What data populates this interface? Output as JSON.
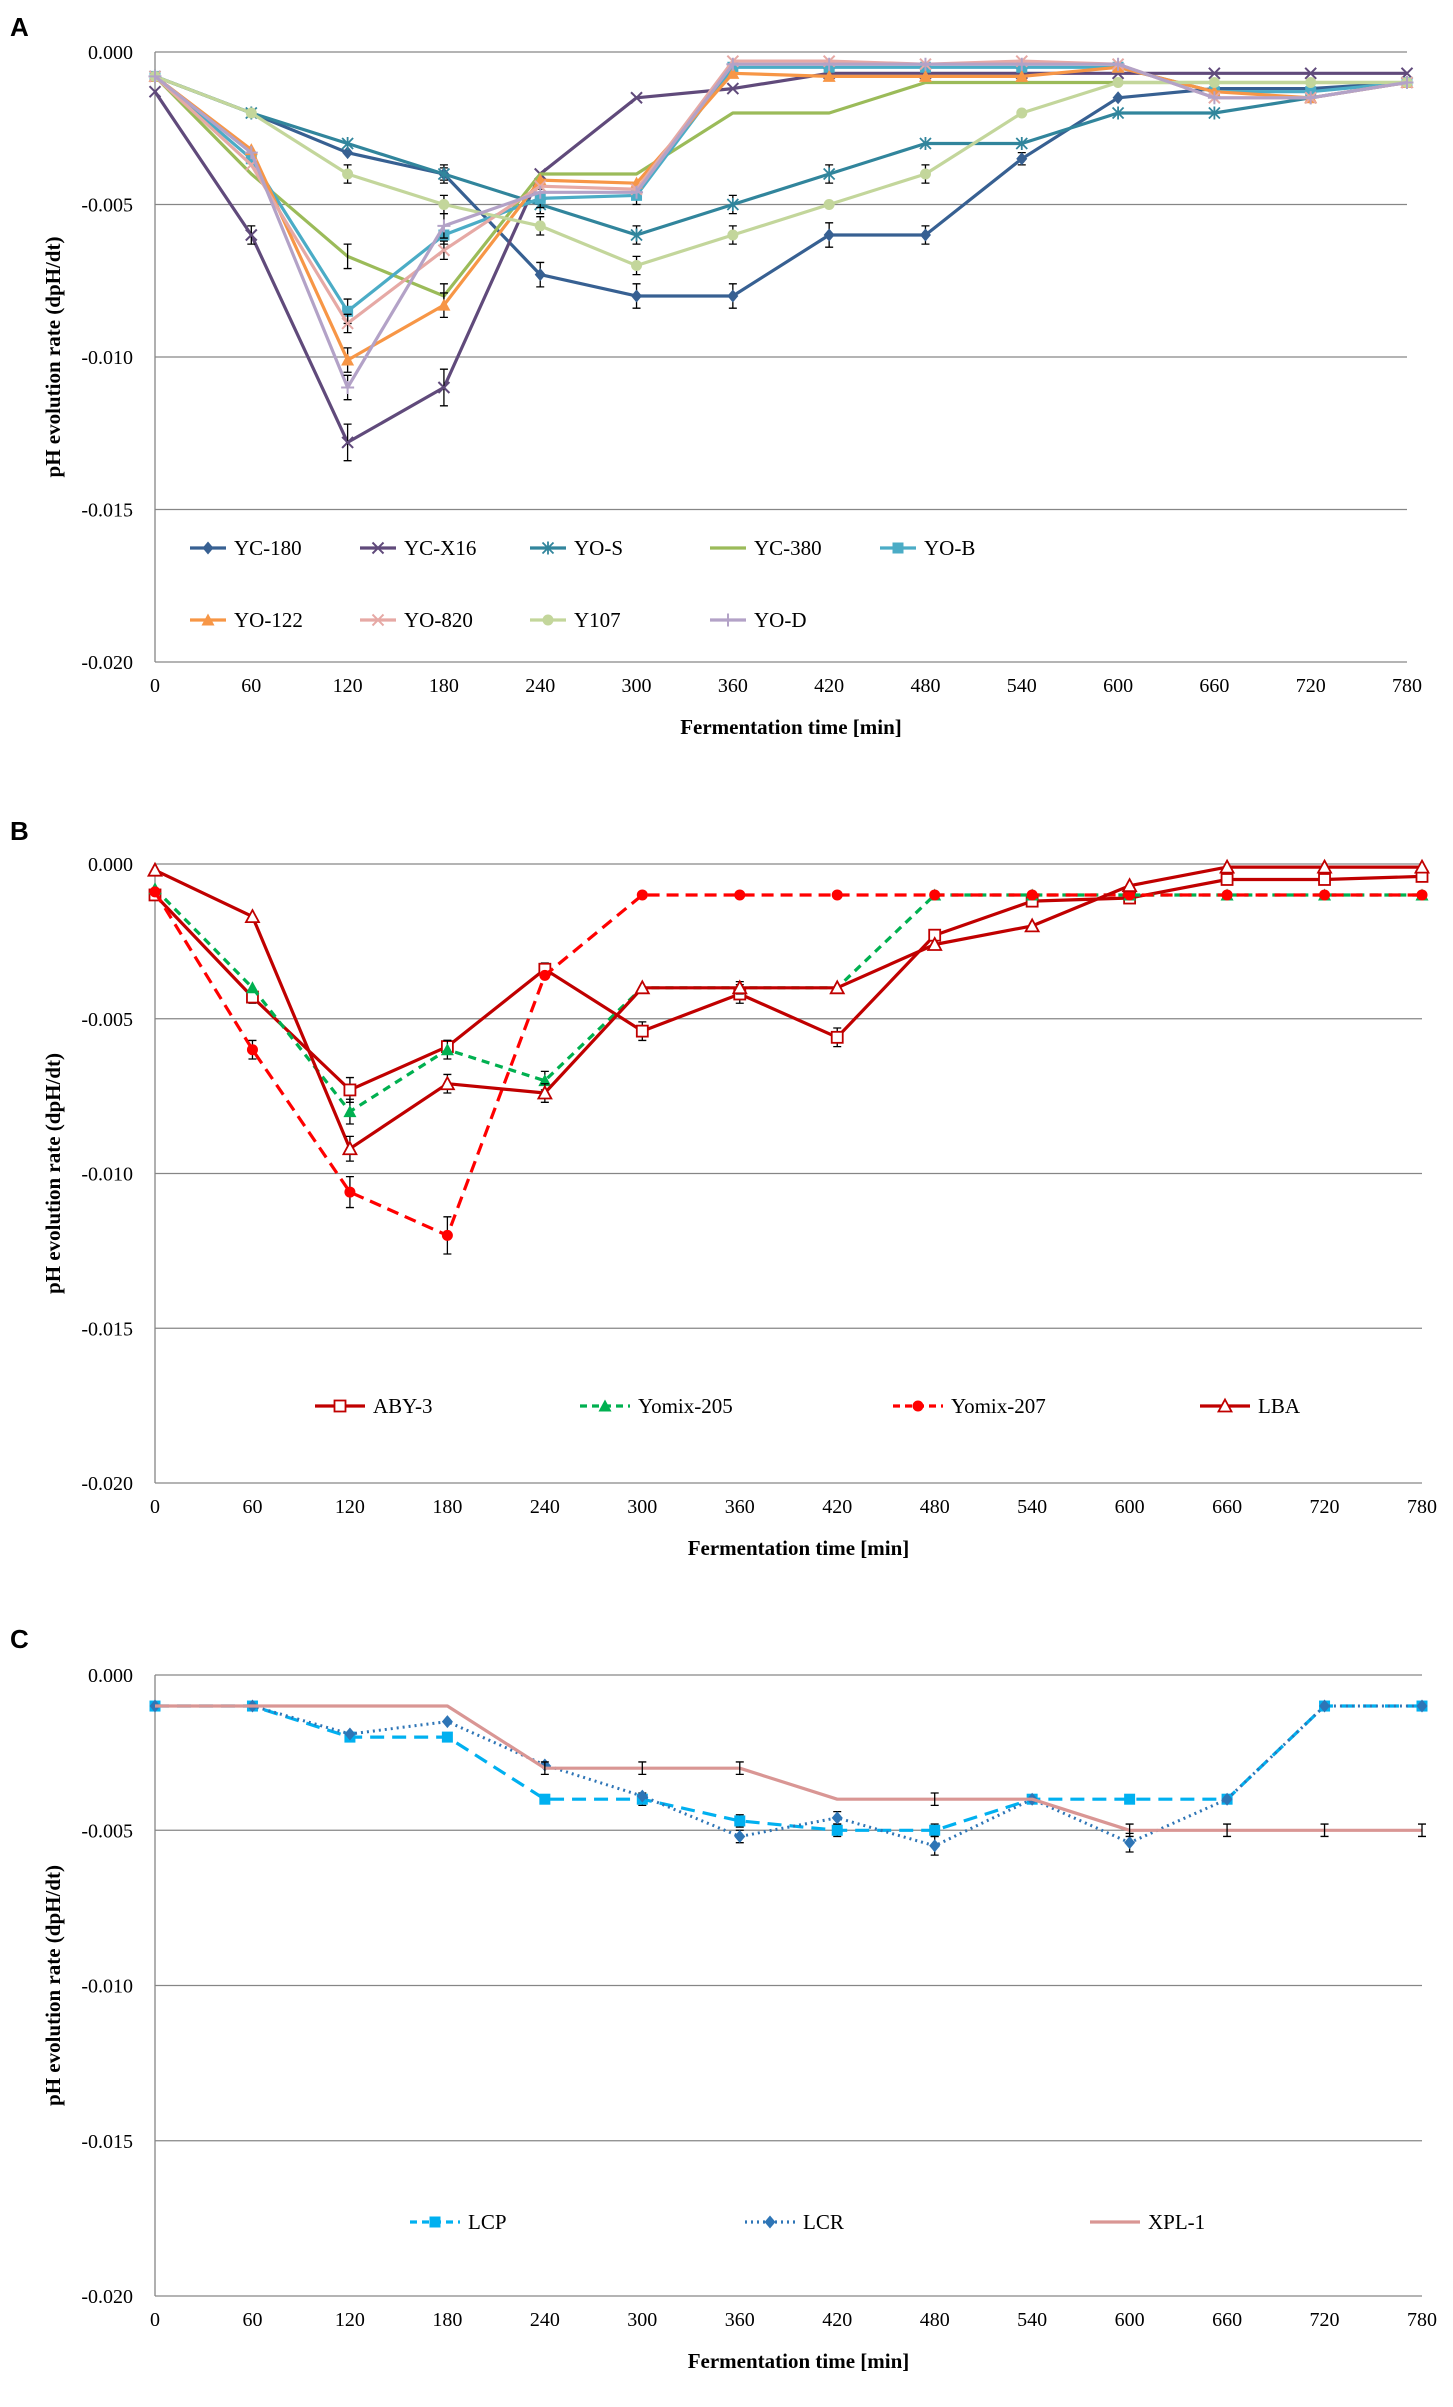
{
  "chart_data": [
    {
      "panel": "A",
      "type": "line",
      "xlabel": "Fermentation time [min]",
      "ylabel": "pH evolution rate (dpH/dt)",
      "ylim": [
        -0.02,
        0.0
      ],
      "yticks": [
        "0.000",
        "-0.005",
        "-0.010",
        "-0.015",
        "-0.020"
      ],
      "xticks": [
        "0",
        "60",
        "120",
        "180",
        "240",
        "300",
        "360",
        "420",
        "480",
        "540",
        "600",
        "660",
        "720",
        "780"
      ],
      "x": [
        0,
        60,
        120,
        180,
        240,
        300,
        360,
        420,
        480,
        540,
        600,
        660,
        720,
        780
      ],
      "legend": "inside-bottom",
      "series": [
        {
          "name": "YC-180",
          "color": "#376092",
          "marker": "diamond",
          "dash": "",
          "values": [
            -0.0008,
            -0.002,
            -0.0033,
            -0.004,
            -0.0073,
            -0.008,
            -0.008,
            -0.006,
            -0.006,
            -0.0035,
            -0.0015,
            -0.0012,
            -0.0012,
            -0.001
          ],
          "err": [
            0,
            0,
            0,
            0.0003,
            0.0004,
            0.0004,
            0.0004,
            0.0004,
            0.0003,
            0.0002,
            0,
            0,
            0,
            0
          ]
        },
        {
          "name": "YC-X16",
          "color": "#604A7B",
          "marker": "x",
          "dash": "",
          "values": [
            -0.0013,
            -0.006,
            -0.0128,
            -0.011,
            -0.004,
            -0.0015,
            -0.0012,
            -0.0007,
            -0.0007,
            -0.0007,
            -0.0007,
            -0.0007,
            -0.0007,
            -0.0007
          ],
          "err": [
            0,
            0.0003,
            0.0006,
            0.0006,
            0,
            0,
            0,
            0,
            0,
            0,
            0,
            0,
            0,
            0
          ]
        },
        {
          "name": "YO-S",
          "color": "#31859C",
          "marker": "star",
          "dash": "",
          "values": [
            -0.0008,
            -0.002,
            -0.003,
            -0.004,
            -0.005,
            -0.006,
            -0.005,
            -0.004,
            -0.003,
            -0.003,
            -0.002,
            -0.002,
            -0.0015,
            -0.001
          ],
          "err": [
            0,
            0,
            0,
            0.0002,
            0.0003,
            0.0003,
            0.0003,
            0.0003,
            0,
            0,
            0,
            0,
            0,
            0
          ]
        },
        {
          "name": "YC-380",
          "color": "#9BBB59",
          "marker": "none",
          "dash": "",
          "values": [
            -0.0008,
            -0.004,
            -0.0067,
            -0.008,
            -0.004,
            -0.004,
            -0.002,
            -0.002,
            -0.001,
            -0.001,
            -0.001,
            -0.001,
            -0.001,
            -0.001
          ],
          "err": [
            0,
            0,
            0.0004,
            0.0004,
            0,
            0,
            0,
            0,
            0,
            0,
            0,
            0,
            0,
            0
          ]
        },
        {
          "name": "YO-B",
          "color": "#4BACC6",
          "marker": "square",
          "dash": "",
          "values": [
            -0.0008,
            -0.0035,
            -0.0085,
            -0.006,
            -0.0048,
            -0.0047,
            -0.0005,
            -0.0005,
            -0.0005,
            -0.0005,
            -0.0005,
            -0.0013,
            -0.0013,
            -0.001
          ],
          "err": [
            0,
            0,
            0.0004,
            0.0003,
            0.0003,
            0.0003,
            0,
            0,
            0,
            0,
            0,
            0,
            0,
            0
          ]
        },
        {
          "name": "YO-122",
          "color": "#F79646",
          "marker": "triangle",
          "dash": "",
          "values": [
            -0.0008,
            -0.0032,
            -0.0101,
            -0.0083,
            -0.0042,
            -0.0043,
            -0.0007,
            -0.0008,
            -0.0008,
            -0.0008,
            -0.0005,
            -0.0013,
            -0.0015,
            -0.001
          ],
          "err": [
            0,
            0,
            0.0004,
            0.0004,
            0,
            0,
            0,
            0,
            0,
            0,
            0,
            0,
            0,
            0
          ]
        },
        {
          "name": "YO-820",
          "color": "#E6A9A5",
          "marker": "x",
          "dash": "",
          "values": [
            -0.0008,
            -0.0037,
            -0.0089,
            -0.0065,
            -0.0044,
            -0.0045,
            -0.0003,
            -0.0003,
            -0.0004,
            -0.0003,
            -0.0004,
            -0.0015,
            -0.0015,
            -0.001
          ],
          "err": [
            0,
            0,
            0.0003,
            0.0003,
            0,
            0,
            0,
            0,
            0,
            0,
            0,
            0,
            0,
            0
          ]
        },
        {
          "name": "Y107",
          "color": "#C3D69B",
          "marker": "circle",
          "dash": "",
          "values": [
            -0.0008,
            -0.002,
            -0.004,
            -0.005,
            -0.0057,
            -0.007,
            -0.006,
            -0.005,
            -0.004,
            -0.002,
            -0.001,
            -0.001,
            -0.001,
            -0.001
          ],
          "err": [
            0,
            0,
            0.0003,
            0.0003,
            0.0003,
            0.0003,
            0.0003,
            0,
            0.0003,
            0,
            0,
            0,
            0,
            0
          ]
        },
        {
          "name": "YO-D",
          "color": "#B3A2C7",
          "marker": "plus",
          "dash": "",
          "values": [
            -0.0008,
            -0.0033,
            -0.011,
            -0.0057,
            -0.0046,
            -0.0046,
            -0.0004,
            -0.0004,
            -0.0004,
            -0.0004,
            -0.0004,
            -0.0015,
            -0.0015,
            -0.001
          ],
          "err": [
            0,
            0,
            0.0004,
            0.0004,
            0,
            0,
            0,
            0,
            0,
            0,
            0,
            0,
            0,
            0
          ]
        }
      ]
    },
    {
      "panel": "B",
      "type": "line",
      "xlabel": "Fermentation time [min]",
      "ylabel": "pH evolution rate (dpH/dt)",
      "ylim": [
        -0.02,
        0.0
      ],
      "yticks": [
        "0.000",
        "-0.005",
        "-0.010",
        "-0.015",
        "-0.020"
      ],
      "xticks": [
        "0",
        "60",
        "120",
        "180",
        "240",
        "300",
        "360",
        "420",
        "480",
        "540",
        "600",
        "660",
        "720",
        "780"
      ],
      "x": [
        0,
        60,
        120,
        180,
        240,
        300,
        360,
        420,
        480,
        540,
        600,
        660,
        720,
        780
      ],
      "legend": "inside-bottom",
      "series": [
        {
          "name": "ABY-3",
          "color": "#C00000",
          "marker": "square-open",
          "dash": "",
          "values": [
            -0.001,
            -0.0043,
            -0.0073,
            -0.0059,
            -0.0034,
            -0.0054,
            -0.0042,
            -0.0056,
            -0.0023,
            -0.0012,
            -0.0011,
            -0.0005,
            -0.0005,
            -0.0004
          ],
          "err": [
            0,
            0.0002,
            0.0004,
            0.0002,
            0.0002,
            0.0003,
            0.0003,
            0.0003,
            0,
            0,
            0,
            0,
            0,
            0
          ]
        },
        {
          "name": "Yomix-205",
          "color": "#00B050",
          "marker": "triangle",
          "dash": "8,6",
          "values": [
            -0.0008,
            -0.004,
            -0.008,
            -0.006,
            -0.007,
            -0.004,
            -0.004,
            -0.004,
            -0.001,
            -0.001,
            -0.001,
            -0.001,
            -0.001,
            -0.001
          ],
          "err": [
            0,
            0,
            0.0004,
            0.0003,
            0.0003,
            0,
            0,
            0,
            0,
            0,
            0,
            0,
            0,
            0
          ]
        },
        {
          "name": "Yomix-207",
          "color": "#FF0000",
          "marker": "circle",
          "dash": "12,7",
          "values": [
            -0.0009,
            -0.006,
            -0.0106,
            -0.012,
            -0.0036,
            -0.001,
            -0.001,
            -0.001,
            -0.001,
            -0.001,
            -0.001,
            -0.001,
            -0.001,
            -0.001
          ],
          "err": [
            0,
            0.0003,
            0.0005,
            0.0006,
            0,
            0,
            0,
            0,
            0,
            0,
            0,
            0,
            0,
            0
          ]
        },
        {
          "name": "LBA",
          "color": "#C00000",
          "marker": "triangle-open",
          "dash": "",
          "values": [
            -0.0002,
            -0.0017,
            -0.0092,
            -0.0071,
            -0.0074,
            -0.004,
            -0.004,
            -0.004,
            -0.0026,
            -0.002,
            -0.0007,
            -0.0001,
            -0.0001,
            -0.0001
          ],
          "err": [
            0,
            0,
            0.0004,
            0.0003,
            0.0003,
            0,
            0.0002,
            0,
            0,
            0,
            0,
            0,
            0,
            0
          ]
        }
      ]
    },
    {
      "panel": "C",
      "type": "line",
      "xlabel": "Fermentation time [min]",
      "ylabel": "pH evolution rate (dpH/dt)",
      "ylim": [
        -0.02,
        0.0
      ],
      "yticks": [
        "0.000",
        "-0.005",
        "-0.010",
        "-0.015",
        "-0.020"
      ],
      "xticks": [
        "0",
        "60",
        "120",
        "180",
        "240",
        "300",
        "360",
        "420",
        "480",
        "540",
        "600",
        "660",
        "720",
        "780"
      ],
      "x": [
        0,
        60,
        120,
        180,
        240,
        300,
        360,
        420,
        480,
        540,
        600,
        660,
        720,
        780
      ],
      "legend": "inside-bottom",
      "series": [
        {
          "name": "LCP",
          "color": "#00B0F0",
          "marker": "square",
          "dash": "14,8",
          "values": [
            -0.001,
            -0.001,
            -0.002,
            -0.002,
            -0.004,
            -0.004,
            -0.0047,
            -0.005,
            -0.005,
            -0.004,
            -0.004,
            -0.004,
            -0.001,
            -0.001
          ],
          "err": [
            0,
            0,
            0,
            0,
            0,
            0.0002,
            0.0002,
            0.0002,
            0.0002,
            0,
            0,
            0,
            0,
            0
          ]
        },
        {
          "name": "LCR",
          "color": "#2E75B6",
          "marker": "diamond",
          "dash": "2,4",
          "values": [
            -0.001,
            -0.001,
            -0.0019,
            -0.0015,
            -0.0029,
            -0.0039,
            -0.0052,
            -0.0046,
            -0.0055,
            -0.004,
            -0.0054,
            -0.004,
            -0.001,
            -0.001
          ],
          "err": [
            0,
            0,
            0,
            0,
            0,
            0,
            0.0002,
            0.0002,
            0.0003,
            0,
            0.0003,
            0,
            0,
            0
          ]
        },
        {
          "name": "XPL-1",
          "color": "#D99694",
          "marker": "none",
          "dash": "",
          "values": [
            -0.001,
            -0.001,
            -0.001,
            -0.001,
            -0.003,
            -0.003,
            -0.003,
            -0.004,
            -0.004,
            -0.004,
            -0.005,
            -0.005,
            -0.005,
            -0.005
          ],
          "err": [
            0,
            0,
            0,
            0,
            0.0002,
            0.0002,
            0.0002,
            0,
            0.0002,
            0,
            0.0002,
            0.0002,
            0.0002,
            0.0002
          ]
        }
      ]
    }
  ]
}
